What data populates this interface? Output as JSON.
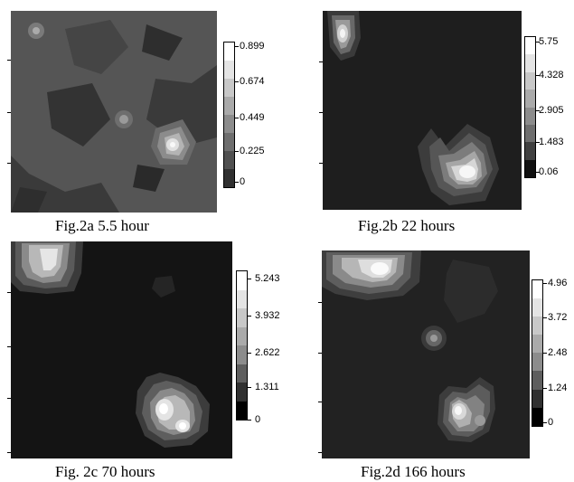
{
  "panels": [
    {
      "caption": "Fig.2a 5.5 hour",
      "colorbar_ticks": [
        "0.899",
        "0.674",
        "0.449",
        "0.225",
        "0"
      ],
      "colors": {
        "background": "#3a3a3a",
        "mid": "#5a5a5a",
        "peak": "#f2f2f2"
      }
    },
    {
      "caption": "Fig.2b 22 hours",
      "colorbar_ticks": [
        "5.75",
        "4.328",
        "2.905",
        "1.483",
        "0.06"
      ],
      "colors": {
        "background": "#1e1e1e",
        "mid": "#6a6a6a",
        "peak": "#fafafa"
      }
    },
    {
      "caption": "Fig. 2c 70 hours",
      "colorbar_ticks": [
        "5.243",
        "3.932",
        "2.622",
        "1.311",
        "0"
      ],
      "colors": {
        "background": "#141414",
        "mid": "#6a6a6a",
        "peak": "#ffffff"
      }
    },
    {
      "caption": "Fig.2d 166 hours",
      "colorbar_ticks": [
        "4.96",
        "3.72",
        "2.48",
        "1.24",
        "0"
      ],
      "colors": {
        "background": "#222222",
        "mid": "#6a6a6a",
        "peak": "#ffffff"
      }
    }
  ]
}
